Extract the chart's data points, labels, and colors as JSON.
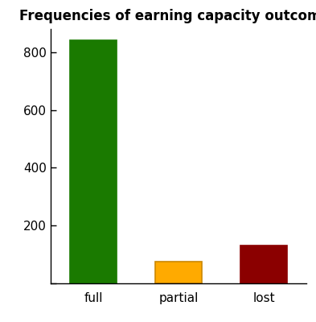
{
  "categories": [
    "full",
    "partial",
    "lost"
  ],
  "values": [
    840,
    75,
    130
  ],
  "bar_colors": [
    "#1a7a00",
    "#ffaa00",
    "#8b0000"
  ],
  "title": "Frequencies of earning capacity outcomes",
  "ylim": [
    0,
    880
  ],
  "yticks": [
    0,
    200,
    400,
    600,
    800
  ],
  "background_color": "#ffffff",
  "title_fontsize": 12,
  "tick_fontsize": 11,
  "bar_width": 0.55,
  "bar_positions": [
    0.22,
    0.55,
    0.88
  ],
  "figsize": [
    3.93,
    4.0
  ],
  "dpi": 100
}
